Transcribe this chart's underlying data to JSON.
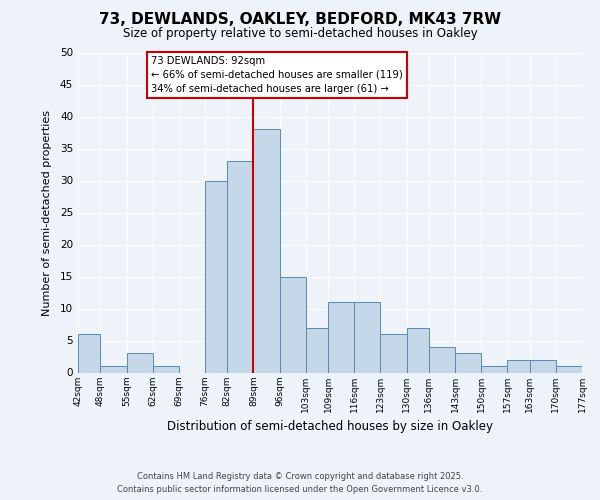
{
  "title": "73, DEWLANDS, OAKLEY, BEDFORD, MK43 7RW",
  "subtitle": "Size of property relative to semi-detached houses in Oakley",
  "xlabel": "Distribution of semi-detached houses by size in Oakley",
  "ylabel": "Number of semi-detached properties",
  "bins": [
    42,
    48,
    55,
    62,
    69,
    76,
    82,
    89,
    96,
    103,
    109,
    116,
    123,
    130,
    136,
    143,
    150,
    157,
    163,
    170,
    177
  ],
  "bin_labels": [
    "42sqm",
    "48sqm",
    "55sqm",
    "62sqm",
    "69sqm",
    "76sqm",
    "82sqm",
    "89sqm",
    "96sqm",
    "103sqm",
    "109sqm",
    "116sqm",
    "123sqm",
    "130sqm",
    "136sqm",
    "143sqm",
    "150sqm",
    "157sqm",
    "163sqm",
    "170sqm",
    "177sqm"
  ],
  "counts": [
    6,
    1,
    3,
    1,
    0,
    30,
    33,
    38,
    15,
    7,
    11,
    11,
    6,
    7,
    4,
    3,
    1,
    2,
    2,
    1,
    0
  ],
  "bar_color": "#c5d8ea",
  "bar_edge_color": "#5a8ab0",
  "vline_x": 89,
  "vline_color": "#cc0000",
  "annotation_title": "73 DEWLANDS: 92sqm",
  "annotation_line1": "← 66% of semi-detached houses are smaller (119)",
  "annotation_line2": "34% of semi-detached houses are larger (61) →",
  "annotation_box_color": "#ffffff",
  "annotation_box_edge": "#cc0000",
  "ylim": [
    0,
    50
  ],
  "yticks": [
    0,
    5,
    10,
    15,
    20,
    25,
    30,
    35,
    40,
    45,
    50
  ],
  "footer1": "Contains HM Land Registry data © Crown copyright and database right 2025.",
  "footer2": "Contains public sector information licensed under the Open Government Licence v3.0.",
  "bg_color": "#eef3fa"
}
